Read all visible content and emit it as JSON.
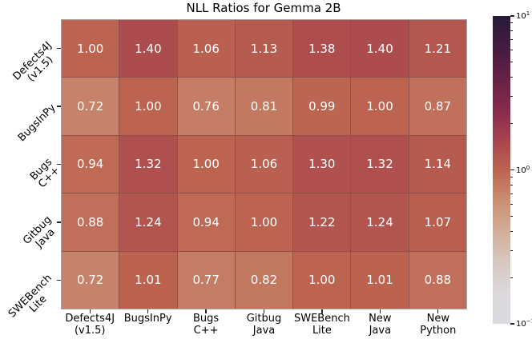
{
  "chart_data": {
    "type": "heatmap",
    "title": "NLL Ratios for Gemma 2B",
    "row_labels": [
      "Defects4J\n(v1.5)",
      "BugsInPy",
      "Bugs\nC++",
      "Gitbug\nJava",
      "SWEBench\nLite"
    ],
    "col_labels": [
      "Defects4J\n(v1.5)",
      "BugsInPy",
      "Bugs\nC++",
      "Gitbug\nJava",
      "SWEBench\nLite",
      "New\nJava",
      "New\nPython"
    ],
    "values": [
      [
        1.0,
        1.4,
        1.06,
        1.13,
        1.38,
        1.4,
        1.21
      ],
      [
        0.72,
        1.0,
        0.76,
        0.81,
        0.99,
        1.0,
        0.87
      ],
      [
        0.94,
        1.32,
        1.0,
        1.06,
        1.3,
        1.32,
        1.14
      ],
      [
        0.88,
        1.24,
        0.94,
        1.0,
        1.22,
        1.24,
        1.07
      ],
      [
        0.72,
        1.01,
        0.77,
        0.82,
        1.0,
        1.01,
        0.88
      ]
    ],
    "value_decimals": 2,
    "scale": "log10",
    "vmin": 0.1,
    "vmax": 10,
    "grid": true,
    "legend_position": "right-colorbar",
    "colorbar": {
      "ticks": [
        {
          "base": "10",
          "exp": "1",
          "value": 10
        },
        {
          "base": "10",
          "exp": "0",
          "value": 1
        },
        {
          "base": "10",
          "exp": "−1",
          "value": 0.1
        }
      ],
      "minor_ticks_per_decade": [
        2,
        3,
        4,
        5,
        6,
        7,
        8,
        9
      ]
    },
    "colors": {
      "cell_text": "#ffffff",
      "label_text": "#000000",
      "tick": "#262626",
      "grid_line": "#8f5049",
      "frame": "#a5a5a5",
      "colormap_stops": [
        [
          0.0,
          "#d9dbe1"
        ],
        [
          0.1,
          "#dcd8dc"
        ],
        [
          0.2,
          "#d8c7bf"
        ],
        [
          0.3,
          "#d2ae99"
        ],
        [
          0.4,
          "#cb8f73"
        ],
        [
          0.5,
          "#bc6450"
        ],
        [
          0.58,
          "#ab4a4e"
        ],
        [
          0.68,
          "#8c2c4d"
        ],
        [
          0.78,
          "#6b2348"
        ],
        [
          0.88,
          "#4a1c41"
        ],
        [
          1.0,
          "#261a38"
        ]
      ]
    }
  }
}
